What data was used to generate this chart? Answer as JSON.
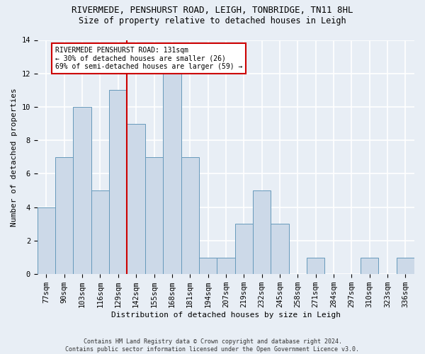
{
  "title1": "RIVERMEDE, PENSHURST ROAD, LEIGH, TONBRIDGE, TN11 8HL",
  "title2": "Size of property relative to detached houses in Leigh",
  "xlabel": "Distribution of detached houses by size in Leigh",
  "ylabel": "Number of detached properties",
  "categories": [
    "77sqm",
    "90sqm",
    "103sqm",
    "116sqm",
    "129sqm",
    "142sqm",
    "155sqm",
    "168sqm",
    "181sqm",
    "194sqm",
    "207sqm",
    "219sqm",
    "232sqm",
    "245sqm",
    "258sqm",
    "271sqm",
    "284sqm",
    "297sqm",
    "310sqm",
    "323sqm",
    "336sqm"
  ],
  "values": [
    4,
    7,
    10,
    5,
    11,
    9,
    7,
    12,
    7,
    1,
    1,
    3,
    5,
    3,
    0,
    1,
    0,
    0,
    1,
    0,
    1
  ],
  "bar_color": "#ccd9e8",
  "bar_edge_color": "#6699bb",
  "reference_line_x": 4.5,
  "annotation_text": "RIVERMEDE PENSHURST ROAD: 131sqm\n← 30% of detached houses are smaller (26)\n69% of semi-detached houses are larger (59) →",
  "annotation_box_color": "#ffffff",
  "annotation_box_edge_color": "#cc0000",
  "reference_line_color": "#cc0000",
  "ylim": [
    0,
    14
  ],
  "yticks": [
    0,
    2,
    4,
    6,
    8,
    10,
    12,
    14
  ],
  "footer": "Contains HM Land Registry data © Crown copyright and database right 2024.\nContains public sector information licensed under the Open Government Licence v3.0.",
  "background_color": "#e8eef5",
  "grid_color": "#ffffff",
  "title1_fontsize": 9,
  "title2_fontsize": 8.5,
  "xlabel_fontsize": 8,
  "ylabel_fontsize": 8,
  "tick_fontsize": 7.5,
  "annotation_fontsize": 7,
  "footer_fontsize": 6
}
